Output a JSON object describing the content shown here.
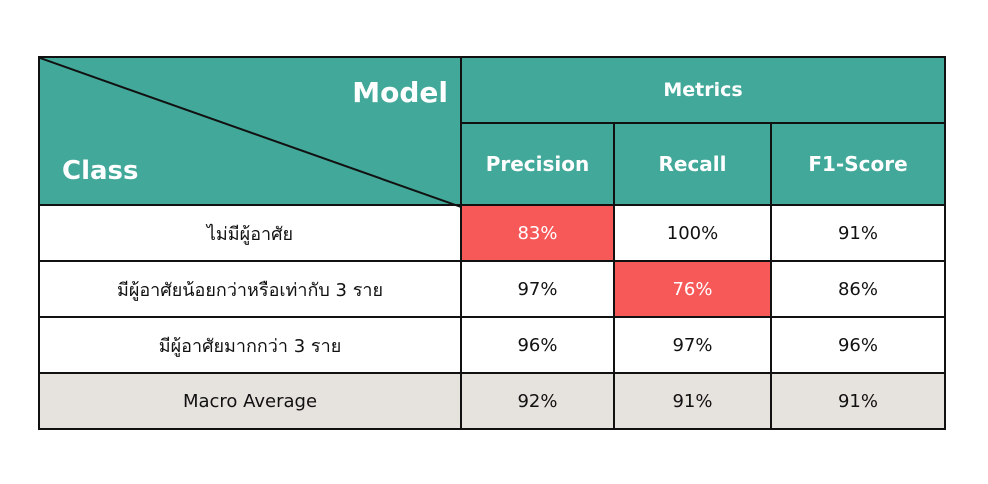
{
  "colors": {
    "header": "#42a899",
    "highlight": "#f75959",
    "average_row": "#e6e2de"
  },
  "chart_data": {
    "type": "table",
    "corner": {
      "top_right": "Model",
      "bottom_left": "Class"
    },
    "group_header": "Metrics",
    "columns": [
      "Precision",
      "Recall",
      "F1-Score"
    ],
    "rows": [
      {
        "label": "ไม่มีผู้อาศัย",
        "values": [
          "83%",
          "100%",
          "91%"
        ],
        "highlight": [
          true,
          false,
          false
        ]
      },
      {
        "label": "มีผู้อาศัยน้อยกว่าหรือเท่ากับ 3 ราย",
        "values": [
          "97%",
          "76%",
          "86%"
        ],
        "highlight": [
          false,
          true,
          false
        ]
      },
      {
        "label": "มีผู้อาศัยมากกว่า 3 ราย",
        "values": [
          "96%",
          "97%",
          "96%"
        ],
        "highlight": [
          false,
          false,
          false
        ]
      },
      {
        "label": "Macro Average",
        "values": [
          "92%",
          "91%",
          "91%"
        ],
        "highlight": [
          false,
          false,
          false
        ]
      }
    ]
  }
}
